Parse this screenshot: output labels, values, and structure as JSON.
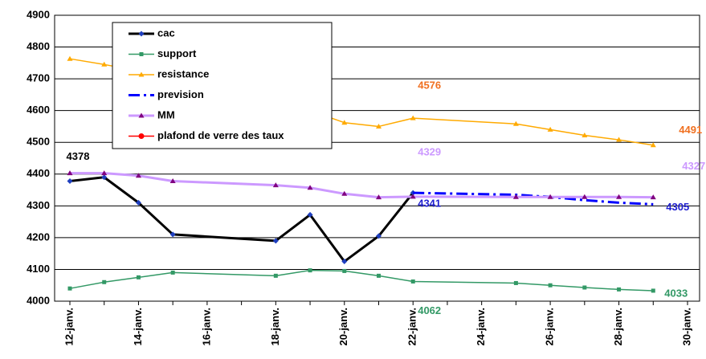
{
  "chart_data": {
    "type": "line",
    "categories": [
      "12-janv.",
      null,
      "14-janv.",
      null,
      "16-janv.",
      null,
      "18-janv.",
      null,
      "20-janv.",
      null,
      "22-janv.",
      null,
      "24-janv.",
      null,
      "26-janv.",
      null,
      "28-janv.",
      null,
      "30-janv."
    ],
    "series": [
      {
        "name": "cac",
        "color": "#000000",
        "marker": "diamond",
        "marker_color": "#1f3fbf",
        "dash": "solid",
        "width": 3,
        "label_color": "#000000",
        "labeled_points": [
          0
        ],
        "values": [
          4378,
          4390,
          4310,
          4210,
          null,
          null,
          4190,
          4272,
          4125,
          4205,
          4341,
          null,
          null,
          null,
          null,
          null,
          null,
          null,
          null
        ]
      },
      {
        "name": "support",
        "color": "#339966",
        "marker": "square",
        "marker_color": "#339966",
        "dash": "solid",
        "width": 1.5,
        "label_color": "#339966",
        "labeled_points": [
          10,
          17
        ],
        "values": [
          4040,
          4060,
          4075,
          4090,
          null,
          null,
          4080,
          4097,
          4095,
          4080,
          4062,
          null,
          null,
          4057,
          4050,
          4043,
          4037,
          4033,
          null
        ]
      },
      {
        "name": "resistance",
        "color": "#ffaa00",
        "marker": "triangle",
        "marker_color": "#ffaa00",
        "dash": "solid",
        "width": 1.5,
        "label_color": "#f07020",
        "labeled_points": [
          10,
          17
        ],
        "values": [
          4763,
          4745,
          4725,
          4700,
          null,
          null,
          4640,
          4600,
          4562,
          4550,
          4576,
          null,
          null,
          4558,
          4540,
          4522,
          4508,
          4491,
          null
        ]
      },
      {
        "name": "prevision",
        "color": "#0000ff",
        "marker": "none",
        "marker_color": "#0000ff",
        "dash": "dashdot",
        "width": 3,
        "label_color": "#1f1fd0",
        "labeled_points": [
          10,
          17
        ],
        "values": [
          null,
          null,
          null,
          null,
          null,
          null,
          null,
          null,
          null,
          null,
          4341,
          null,
          null,
          4335,
          4328,
          4318,
          4310,
          4305,
          null
        ]
      },
      {
        "name": "MM",
        "color": "#cc99ff",
        "marker": "triangle",
        "marker_color": "#800080",
        "dash": "solid",
        "width": 3,
        "label_color": "#cc99ff",
        "labeled_points": [
          10,
          17
        ],
        "values": [
          4403,
          4403,
          4395,
          4378,
          null,
          null,
          4365,
          4357,
          4338,
          4327,
          4329,
          null,
          null,
          4328,
          4328,
          4328,
          4328,
          4327,
          null
        ]
      },
      {
        "name": "plafond de verre des taux",
        "color": "#ff0000",
        "marker": "circle",
        "marker_color": "#ff0000",
        "dash": "solid",
        "width": 1.5,
        "label_color": "#ff0000",
        "labeled_points": [],
        "values": [
          null,
          null,
          null,
          null,
          null,
          null,
          null,
          null,
          null,
          null,
          null,
          null,
          null,
          null,
          null,
          null,
          null,
          null,
          null
        ]
      }
    ],
    "ylim": [
      4000,
      4900
    ],
    "yticks": [
      4000,
      4100,
      4200,
      4300,
      4400,
      4500,
      4600,
      4700,
      4800,
      4900
    ],
    "grid": true,
    "span_gaps": true,
    "legend": "top-left"
  }
}
